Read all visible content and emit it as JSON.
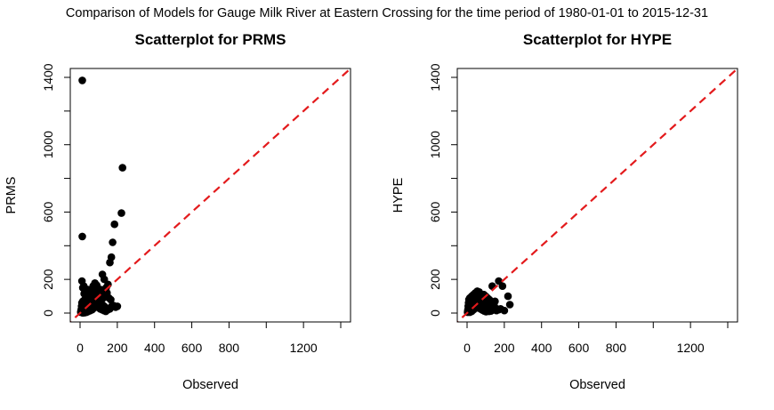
{
  "figure": {
    "title": "Comparison of Models for Gauge Milk River at Eastern Crossing for the time period of 1980-01-01 to 2015-12-31"
  },
  "chart_data": [
    {
      "type": "scatter",
      "title": "Scatterplot for PRMS",
      "xlabel": "Observed",
      "ylabel": "PRMS",
      "xlim": [
        0,
        1400
      ],
      "ylim": [
        0,
        1400
      ],
      "xticks": [
        0,
        200,
        400,
        600,
        800,
        1000,
        1200,
        1400
      ],
      "xtick_labels": [
        "0",
        "200",
        "400",
        "600",
        "800",
        "",
        "1200",
        ""
      ],
      "yticks": [
        0,
        200,
        400,
        600,
        800,
        1000,
        1200,
        1400
      ],
      "ytick_labels": [
        "0",
        "200",
        "",
        "600",
        "",
        "1000",
        "",
        "1400"
      ],
      "reference_line": {
        "slope": 1,
        "intercept": 0,
        "style": "dashed",
        "color": "#e31a1c"
      },
      "point_color": "#000000",
      "series": [
        {
          "points": [
            [
              12,
              1382
            ],
            [
              228,
              863
            ],
            [
              222,
              594
            ],
            [
              185,
              527
            ],
            [
              175,
              420
            ],
            [
              168,
              332
            ],
            [
              160,
              300
            ],
            [
              12,
              455
            ],
            [
              10,
              190
            ],
            [
              15,
              150
            ],
            [
              20,
              160
            ],
            [
              25,
              145
            ],
            [
              30,
              135
            ],
            [
              40,
              140
            ],
            [
              55,
              120
            ],
            [
              70,
              160
            ],
            [
              80,
              178
            ],
            [
              90,
              165
            ],
            [
              120,
              230
            ],
            [
              130,
              200
            ],
            [
              150,
              170
            ],
            [
              140,
              150
            ],
            [
              110,
              140
            ],
            [
              100,
              120
            ],
            [
              60,
              110
            ],
            [
              45,
              100
            ],
            [
              35,
              90
            ],
            [
              25,
              80
            ],
            [
              15,
              70
            ],
            [
              10,
              60
            ],
            [
              8,
              40
            ],
            [
              6,
              20
            ],
            [
              5,
              10
            ],
            [
              4,
              5
            ],
            [
              20,
              30
            ],
            [
              30,
              50
            ],
            [
              40,
              60
            ],
            [
              50,
              70
            ],
            [
              60,
              80
            ],
            [
              70,
              90
            ],
            [
              80,
              100
            ],
            [
              90,
              85
            ],
            [
              100,
              70
            ],
            [
              110,
              60
            ],
            [
              120,
              50
            ],
            [
              130,
              40
            ],
            [
              140,
              30
            ],
            [
              150,
              20
            ],
            [
              160,
              25
            ],
            [
              170,
              40
            ],
            [
              165,
              80
            ],
            [
              155,
              90
            ],
            [
              145,
              100
            ],
            [
              125,
              90
            ],
            [
              115,
              110
            ],
            [
              105,
              95
            ],
            [
              95,
              50
            ],
            [
              85,
              40
            ],
            [
              75,
              30
            ],
            [
              65,
              20
            ],
            [
              55,
              15
            ],
            [
              45,
              10
            ],
            [
              35,
              5
            ],
            [
              25,
              2
            ],
            [
              15,
              1
            ],
            [
              200,
              40
            ],
            [
              190,
              35
            ],
            [
              180,
              45
            ],
            [
              35,
              35
            ],
            [
              28,
              22
            ],
            [
              18,
              12
            ],
            [
              12,
              8
            ],
            [
              50,
              45
            ],
            [
              65,
              55
            ],
            [
              75,
              65
            ],
            [
              85,
              75
            ],
            [
              95,
              110
            ],
            [
              105,
              130
            ],
            [
              115,
              120
            ],
            [
              125,
              135
            ],
            [
              135,
              140
            ],
            [
              145,
              120
            ],
            [
              22,
              115
            ],
            [
              32,
              125
            ],
            [
              42,
              105
            ],
            [
              52,
              95
            ],
            [
              62,
              130
            ],
            [
              72,
              140
            ],
            [
              82,
              125
            ],
            [
              92,
              135
            ],
            [
              48,
              30
            ],
            [
              58,
              35
            ],
            [
              68,
              45
            ],
            [
              78,
              55
            ],
            [
              88,
              60
            ],
            [
              98,
              35
            ],
            [
              108,
              25
            ],
            [
              118,
              20
            ],
            [
              128,
              15
            ],
            [
              138,
              10
            ]
          ]
        }
      ]
    },
    {
      "type": "scatter",
      "title": "Scatterplot for HYPE",
      "xlabel": "Observed",
      "ylabel": "HYPE",
      "xlim": [
        0,
        1400
      ],
      "ylim": [
        0,
        1400
      ],
      "xticks": [
        0,
        200,
        400,
        600,
        800,
        1000,
        1200,
        1400
      ],
      "xtick_labels": [
        "0",
        "200",
        "400",
        "600",
        "800",
        "",
        "1200",
        ""
      ],
      "yticks": [
        0,
        200,
        400,
        600,
        800,
        1000,
        1200,
        1400
      ],
      "ytick_labels": [
        "0",
        "200",
        "",
        "600",
        "",
        "1000",
        "",
        "1400"
      ],
      "reference_line": {
        "slope": 1,
        "intercept": 0,
        "style": "dashed",
        "color": "#e31a1c"
      },
      "point_color": "#000000",
      "series": [
        {
          "points": [
            [
              170,
              190
            ],
            [
              190,
              160
            ],
            [
              220,
              100
            ],
            [
              230,
              50
            ],
            [
              200,
              15
            ],
            [
              135,
              160
            ],
            [
              55,
              130
            ],
            [
              65,
              125
            ],
            [
              45,
              120
            ],
            [
              35,
              110
            ],
            [
              25,
              100
            ],
            [
              15,
              90
            ],
            [
              10,
              80
            ],
            [
              8,
              60
            ],
            [
              6,
              40
            ],
            [
              5,
              20
            ],
            [
              4,
              10
            ],
            [
              3,
              5
            ],
            [
              20,
              70
            ],
            [
              30,
              80
            ],
            [
              40,
              90
            ],
            [
              50,
              100
            ],
            [
              60,
              95
            ],
            [
              70,
              85
            ],
            [
              80,
              75
            ],
            [
              90,
              65
            ],
            [
              100,
              55
            ],
            [
              110,
              50
            ],
            [
              120,
              45
            ],
            [
              130,
              40
            ],
            [
              140,
              35
            ],
            [
              150,
              30
            ],
            [
              160,
              25
            ],
            [
              170,
              20
            ],
            [
              180,
              25
            ],
            [
              120,
              80
            ],
            [
              110,
              90
            ],
            [
              100,
              100
            ],
            [
              90,
              110
            ],
            [
              80,
              95
            ],
            [
              75,
              60
            ],
            [
              65,
              50
            ],
            [
              55,
              40
            ],
            [
              45,
              30
            ],
            [
              35,
              20
            ],
            [
              25,
              10
            ],
            [
              15,
              5
            ],
            [
              12,
              15
            ],
            [
              18,
              25
            ],
            [
              28,
              35
            ],
            [
              38,
              45
            ],
            [
              48,
              55
            ],
            [
              58,
              65
            ],
            [
              68,
              70
            ],
            [
              78,
              40
            ],
            [
              88,
              30
            ],
            [
              98,
              20
            ],
            [
              108,
              15
            ],
            [
              118,
              10
            ],
            [
              128,
              12
            ],
            [
              138,
              18
            ],
            [
              148,
              22
            ],
            [
              158,
              15
            ],
            [
              22,
              50
            ],
            [
              32,
              60
            ],
            [
              42,
              70
            ],
            [
              52,
              75
            ],
            [
              62,
              30
            ],
            [
              72,
              25
            ],
            [
              82,
              18
            ],
            [
              92,
              12
            ],
            [
              102,
              8
            ],
            [
              112,
              30
            ],
            [
              122,
              25
            ],
            [
              132,
              55
            ],
            [
              142,
              60
            ],
            [
              150,
              70
            ],
            [
              145,
              45
            ]
          ]
        }
      ]
    }
  ]
}
